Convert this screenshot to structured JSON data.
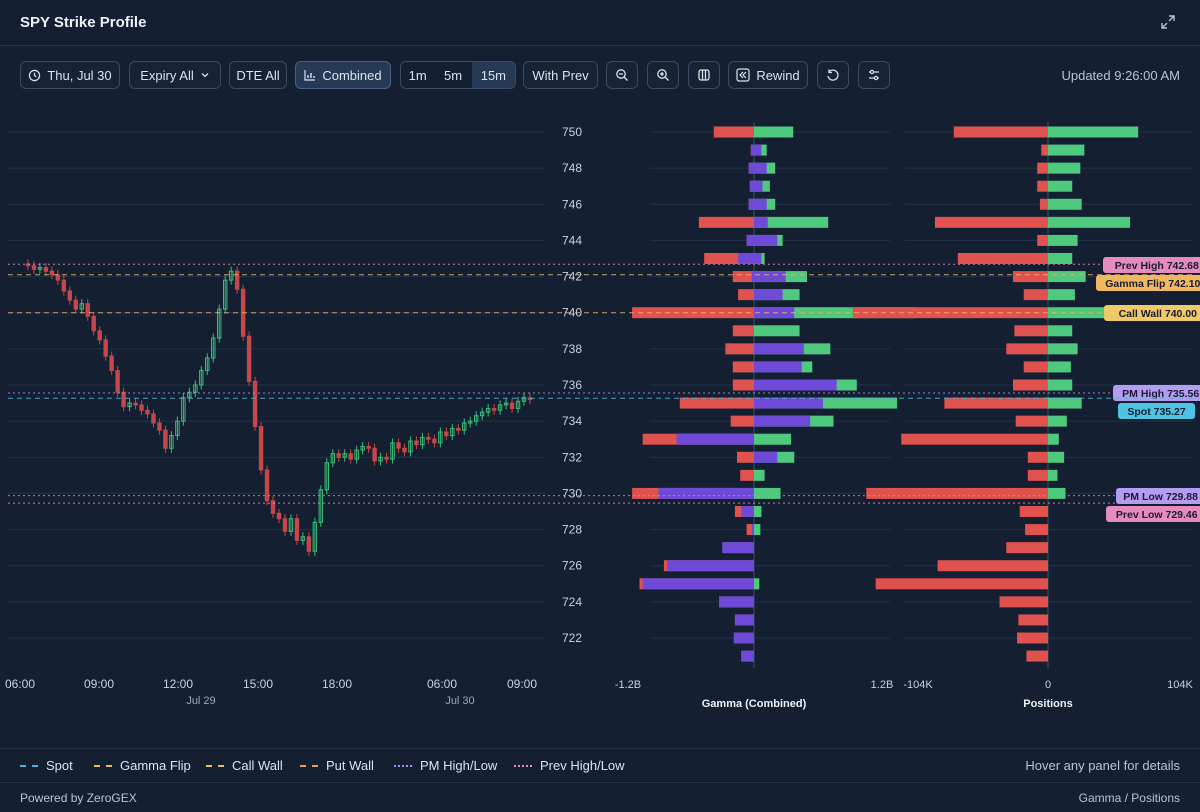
{
  "header": {
    "title": "SPY Strike Profile"
  },
  "toolbar": {
    "date": "Thu, Jul 30",
    "expiry": "Expiry All",
    "dte": "DTE All",
    "mode": "Combined",
    "intervals": [
      "1m",
      "5m",
      "15m"
    ],
    "active_interval": "15m",
    "with_prev": "With Prev",
    "rewind": "Rewind",
    "updated": "Updated 9:26:00 AM"
  },
  "colors": {
    "bg": "#142032",
    "grid": "#22324a",
    "call": "#4ec97d",
    "put": "#e0524d",
    "purple": "#6f4ad8",
    "spot": "#4fb3d9",
    "gamma_flip": "#f0b860",
    "call_wall": "#f0b860",
    "pm": "#a990f0",
    "prev": "#e58bbf"
  },
  "price_chart": {
    "x_labels": [
      "06:00",
      "09:00",
      "12:00",
      "15:00",
      "18:00",
      "06:00",
      "09:00"
    ],
    "date_labels": [
      "Jul 29",
      "Jul 30"
    ]
  },
  "strike_axis": {
    "labels": [
      "750",
      "748",
      "746",
      "744",
      "742",
      "740",
      "738",
      "736",
      "734",
      "732",
      "730",
      "728",
      "726",
      "724",
      "722"
    ]
  },
  "chart_data": [
    {
      "type": "bar",
      "title": "Gamma (Combined)",
      "xlabel": "Gamma (Combined)",
      "xlim_labels": [
        "-1.2B",
        "1.2B"
      ],
      "strikes": [
        750,
        749,
        748,
        747,
        746,
        745,
        744,
        743,
        742,
        741,
        740,
        739,
        738,
        737,
        736,
        735,
        734,
        733,
        732,
        731,
        730,
        729,
        728,
        727,
        726,
        725,
        724,
        723,
        722,
        721
      ],
      "series": [
        {
          "name": "Put",
          "values": [
            -0.38,
            -0.03,
            -0.05,
            -0.04,
            -0.05,
            -0.52,
            -0.07,
            -0.47,
            -0.2,
            -0.15,
            -1.15,
            -0.2,
            -0.27,
            -0.2,
            -0.2,
            -0.7,
            -0.22,
            -1.05,
            -0.16,
            -0.13,
            -1.15,
            -0.18,
            -0.07,
            -0.28,
            -0.85,
            -1.08,
            -0.33,
            -0.18,
            -0.19,
            -0.12
          ]
        },
        {
          "name": "Purple",
          "values": [
            0.02,
            -0.03,
            -0.05,
            -0.04,
            -0.05,
            0.0,
            -0.07,
            -0.15,
            -0.02,
            0.0,
            0.0,
            0.0,
            0.0,
            0.0,
            0.0,
            0.0,
            0.0,
            -0.73,
            0.0,
            0.0,
            -0.9,
            -0.12,
            -0.02,
            -0.3,
            -0.82,
            -1.05,
            -0.33,
            -0.18,
            -0.19,
            -0.12
          ]
        },
        {
          "name": "Purple+",
          "values": [
            0.0,
            0.07,
            0.12,
            0.08,
            0.12,
            0.13,
            0.22,
            0.07,
            0.3,
            0.27,
            0.38,
            0.0,
            0.47,
            0.45,
            0.78,
            0.65,
            0.53,
            0.0,
            0.22,
            0.0,
            0.0,
            0.0,
            0.0,
            0.0,
            0.0,
            0.0,
            0.0,
            0.0,
            0.0,
            0.0
          ]
        },
        {
          "name": "Call",
          "values": [
            0.37,
            0.12,
            0.2,
            0.15,
            0.2,
            0.7,
            0.27,
            0.1,
            0.5,
            0.43,
            1.52,
            0.43,
            0.72,
            0.55,
            0.97,
            1.35,
            0.75,
            0.35,
            0.38,
            0.1,
            0.25,
            0.07,
            0.06,
            0.0,
            0.0,
            0.05,
            0.0,
            0.0,
            0.0,
            0.0
          ]
        }
      ]
    },
    {
      "type": "bar",
      "title": "Positions",
      "xlabel": "Positions",
      "xlim_labels": [
        "-104K",
        "0",
        "104K"
      ],
      "strikes": [
        750,
        749,
        748,
        747,
        746,
        745,
        744,
        743,
        742,
        741,
        740,
        739,
        738,
        737,
        736,
        735,
        734,
        733,
        732,
        731,
        730,
        729,
        728,
        727,
        726,
        725,
        724,
        723,
        722,
        721
      ],
      "series": [
        {
          "name": "Put",
          "values": [
            -70,
            -5,
            -8,
            -8,
            -6,
            -84,
            -8,
            -67,
            -26,
            -18,
            -145,
            -25,
            -31,
            -18,
            -26,
            -77,
            -24,
            -109,
            -15,
            -15,
            -135,
            -21,
            -17,
            -31,
            -82,
            -128,
            -36,
            -22,
            -23,
            -16
          ]
        },
        {
          "name": "Call",
          "values": [
            67,
            27,
            24,
            18,
            25,
            61,
            22,
            18,
            28,
            20,
            187,
            18,
            22,
            17,
            18,
            25,
            14,
            8,
            12,
            7,
            13,
            0,
            0,
            0,
            0,
            0,
            0,
            0,
            0,
            0
          ]
        }
      ]
    }
  ],
  "levels": [
    {
      "key": "prev_high",
      "label": "Prev High 742.68",
      "price": 742.68
    },
    {
      "key": "gamma_flip",
      "label": "Gamma Flip 742.10",
      "price": 742.1
    },
    {
      "key": "call_wall",
      "label": "Call Wall 740.00",
      "price": 740.0
    },
    {
      "key": "pm_high",
      "label": "PM High 735.56",
      "price": 735.56
    },
    {
      "key": "spot",
      "label": "Spot 735.27",
      "price": 735.27
    },
    {
      "key": "pm_low",
      "label": "PM Low 729.88",
      "price": 729.88
    },
    {
      "key": "prev_low",
      "label": "Prev Low 729.46",
      "price": 729.46
    }
  ],
  "legend": {
    "items": [
      "Spot",
      "Gamma Flip",
      "Call Wall",
      "Put Wall",
      "PM High/Low",
      "Prev High/Low"
    ],
    "hint": "Hover any panel for details"
  },
  "footer": {
    "powered": "Powered by ZeroGEX",
    "panel": "Gamma / Positions"
  }
}
